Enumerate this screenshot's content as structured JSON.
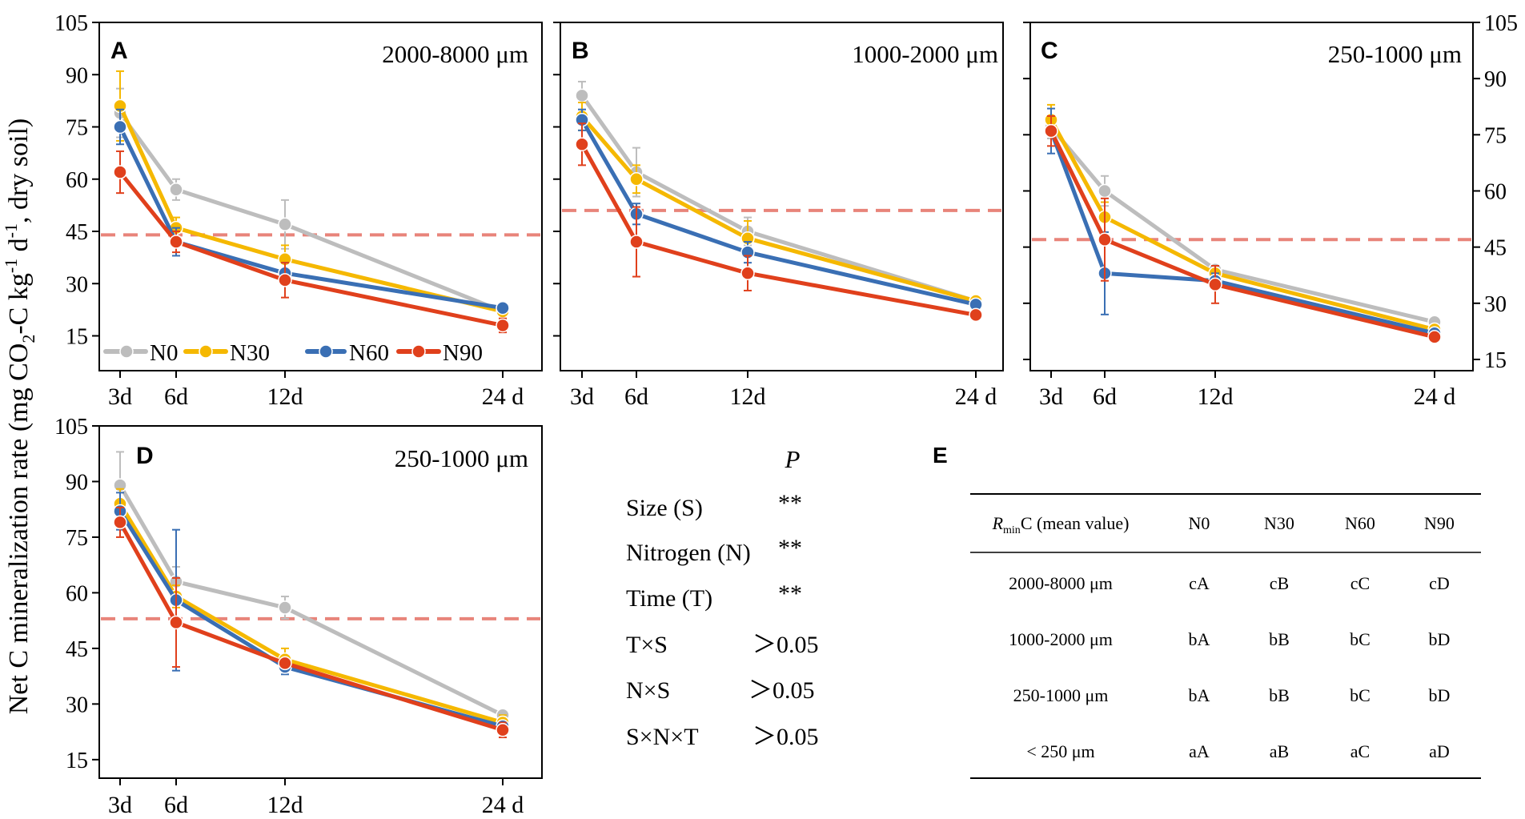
{
  "y_axis_label": "Net C mineralization rate (mg CO2-C kg-1 d-1, dry soil)",
  "y_axis_label_parts": {
    "a": "Net C mineralization rate (mg CO",
    "sub2": "2",
    "b": "-C kg",
    "sup1": "-1",
    "c": " d",
    "sup2": "-1",
    "d": ", dry soil)"
  },
  "colors": {
    "N0": "#bdbdbd",
    "N30": "#f5b800",
    "N60": "#3a6fb4",
    "N90": "#e0401c",
    "refline": "#e8847a"
  },
  "legend": [
    "N0",
    "N30",
    "N60",
    "N90"
  ],
  "chart_data": [
    {
      "panel": "A",
      "type": "line",
      "title": "2000-8000 μm",
      "x_labels": [
        "3d",
        "6d",
        "12d",
        "24 d"
      ],
      "x": [
        3,
        6,
        12,
        24
      ],
      "ylim": [
        5,
        105
      ],
      "yticks": [
        15,
        30,
        45,
        60,
        75,
        90,
        105
      ],
      "ytick_labels": [
        "15",
        "30",
        "45",
        "60",
        "75",
        "90",
        "105"
      ],
      "ref_line": 44,
      "series": [
        {
          "name": "N0",
          "values": [
            79,
            57,
            47,
            22
          ],
          "err": [
            7,
            3,
            7,
            2
          ]
        },
        {
          "name": "N30",
          "values": [
            81,
            46,
            37,
            22
          ],
          "err": [
            10,
            3,
            4,
            2
          ]
        },
        {
          "name": "N60",
          "values": [
            75,
            42,
            33,
            23
          ],
          "err": [
            5,
            4,
            3,
            1
          ]
        },
        {
          "name": "N90",
          "values": [
            62,
            42,
            31,
            18
          ],
          "err": [
            6,
            3,
            5,
            2
          ]
        }
      ]
    },
    {
      "panel": "B",
      "type": "line",
      "title": "1000-2000 μm",
      "x_labels": [
        "3d",
        "6d",
        "12d",
        "24 d"
      ],
      "x": [
        3,
        6,
        12,
        24
      ],
      "ylim": [
        5,
        105
      ],
      "yticks": [
        15,
        30,
        45,
        60,
        75,
        90,
        105
      ],
      "ytick_labels": [],
      "ref_line": 51,
      "series": [
        {
          "name": "N0",
          "values": [
            84,
            62,
            45,
            25
          ],
          "err": [
            4,
            7,
            4,
            1
          ]
        },
        {
          "name": "N30",
          "values": [
            78,
            60,
            43,
            25
          ],
          "err": [
            4,
            4,
            5,
            1
          ]
        },
        {
          "name": "N60",
          "values": [
            77,
            50,
            39,
            24
          ],
          "err": [
            3,
            3,
            3,
            1
          ]
        },
        {
          "name": "N90",
          "values": [
            70,
            42,
            33,
            21
          ],
          "err": [
            6,
            10,
            5,
            1
          ]
        }
      ]
    },
    {
      "panel": "C",
      "type": "line",
      "title": "250-1000 μm",
      "x_labels": [
        "3d",
        "6d",
        "12d",
        "24 d"
      ],
      "x": [
        3,
        6,
        12,
        24
      ],
      "ylim": [
        12,
        105
      ],
      "yticks": [
        15,
        30,
        45,
        60,
        75,
        90,
        105
      ],
      "ytick_labels": [
        "15",
        "30",
        "45",
        "60",
        "75",
        "90",
        "105"
      ],
      "ref_line": 47,
      "series": [
        {
          "name": "N0",
          "values": [
            77,
            60,
            39,
            25
          ],
          "err": [
            3,
            4,
            1,
            1
          ]
        },
        {
          "name": "N30",
          "values": [
            79,
            53,
            38,
            23
          ],
          "err": [
            4,
            4,
            1,
            1
          ]
        },
        {
          "name": "N60",
          "values": [
            76,
            38,
            36,
            22
          ],
          "err": [
            6,
            11,
            2,
            1
          ]
        },
        {
          "name": "N90",
          "values": [
            76,
            47,
            35,
            21
          ],
          "err": [
            4,
            11,
            5,
            1
          ]
        }
      ]
    },
    {
      "panel": "D",
      "type": "line",
      "title": "250-1000 μm",
      "x_labels": [
        "3d",
        "6d",
        "12d",
        "24 d"
      ],
      "x": [
        3,
        6,
        12,
        24
      ],
      "ylim": [
        10,
        105
      ],
      "yticks": [
        15,
        30,
        45,
        60,
        75,
        90,
        105
      ],
      "ytick_labels": [
        "15",
        "30",
        "45",
        "60",
        "75",
        "90",
        "105"
      ],
      "ref_line": 53,
      "series": [
        {
          "name": "N0",
          "values": [
            89,
            63,
            56,
            27
          ],
          "err": [
            9,
            4,
            3,
            1
          ]
        },
        {
          "name": "N30",
          "values": [
            84,
            59,
            42,
            25
          ],
          "err": [
            4,
            3,
            3,
            2
          ]
        },
        {
          "name": "N60",
          "values": [
            82,
            58,
            40,
            24
          ],
          "err": [
            5,
            19,
            2,
            1
          ]
        },
        {
          "name": "N90",
          "values": [
            79,
            52,
            41,
            23
          ],
          "err": [
            4,
            12,
            1,
            2
          ]
        }
      ]
    }
  ],
  "anova": {
    "header": "P",
    "rows": [
      {
        "term": "Size (S)",
        "value": "**"
      },
      {
        "term": "Nitrogen (N)",
        "value": "**"
      },
      {
        "term": "Time (T)",
        "value": "**"
      },
      {
        "term": "T×S",
        "value": "＞0.05"
      },
      {
        "term": "N×S",
        "value": "＞0.05"
      },
      {
        "term": "S×N×T",
        "value": "＞0.05"
      }
    ]
  },
  "table_e": {
    "panel": "E",
    "header_r": "R",
    "header_sub": "min",
    "header_rest": "C (mean value)",
    "columns": [
      "N0",
      "N30",
      "N60",
      "N90"
    ],
    "rows": [
      {
        "label": "2000-8000 μm",
        "cells": [
          "cA",
          "cB",
          "cC",
          "cD"
        ]
      },
      {
        "label": "1000-2000 μm",
        "cells": [
          "bA",
          "bB",
          "bC",
          "bD"
        ]
      },
      {
        "label": "250-1000 μm",
        "cells": [
          "bA",
          "bB",
          "bC",
          "bD"
        ]
      },
      {
        "label": "< 250 μm",
        "cells": [
          "aA",
          "aB",
          "aC",
          "aD"
        ]
      }
    ]
  }
}
